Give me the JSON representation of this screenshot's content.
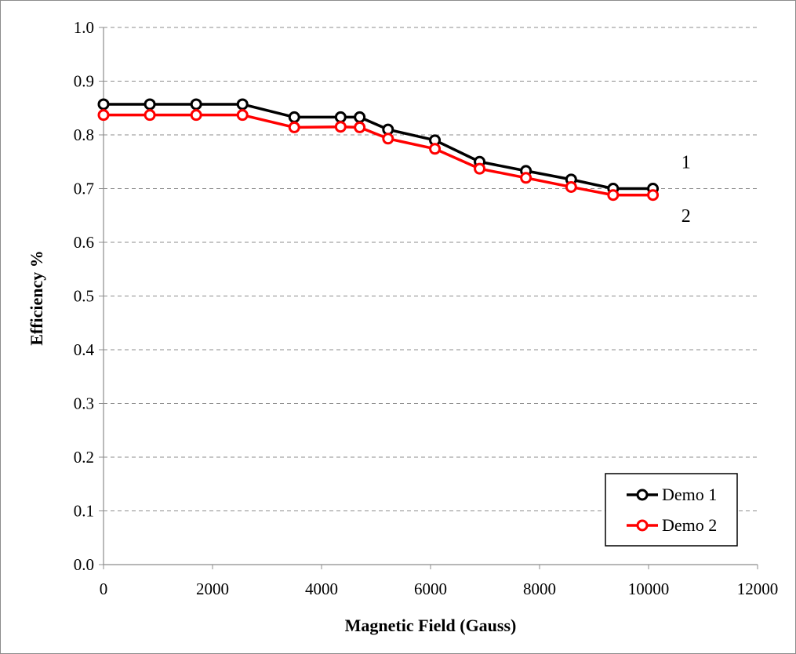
{
  "chart_data": {
    "type": "line",
    "title": "",
    "xlabel": "Magnetic Field (Gauss)",
    "ylabel": "Efficiency %",
    "xlim": [
      0,
      12000
    ],
    "ylim": [
      0,
      1.0
    ],
    "xticks": [
      0,
      2000,
      4000,
      6000,
      8000,
      10000,
      12000
    ],
    "yticks": [
      "0.0",
      "0.1",
      "0.2",
      "0.3",
      "0.4",
      "0.5",
      "0.6",
      "0.7",
      "0.8",
      "0.9",
      "1.0"
    ],
    "grid": "horizontal-dashed",
    "legend_position": "bottom-right",
    "series": [
      {
        "name": "Demo 1",
        "color": "#000000",
        "x": [
          0,
          850,
          1700,
          2550,
          3500,
          4350,
          4700,
          5220,
          6080,
          6900,
          7750,
          8580,
          9350,
          10080
        ],
        "y": [
          0.857,
          0.857,
          0.857,
          0.857,
          0.833,
          0.833,
          0.833,
          0.81,
          0.79,
          0.75,
          0.733,
          0.717,
          0.7,
          0.7
        ]
      },
      {
        "name": "Demo 2",
        "color": "#ff0000",
        "x": [
          0,
          850,
          1700,
          2550,
          3500,
          4350,
          4700,
          5220,
          6080,
          6900,
          7750,
          8580,
          9350,
          10080
        ],
        "y": [
          0.837,
          0.837,
          0.837,
          0.837,
          0.814,
          0.815,
          0.814,
          0.793,
          0.774,
          0.737,
          0.72,
          0.703,
          0.688,
          0.688
        ]
      }
    ],
    "annotations": [
      {
        "text": "1",
        "x": 10600,
        "y": 0.738
      },
      {
        "text": "2",
        "x": 10600,
        "y": 0.638
      }
    ]
  }
}
